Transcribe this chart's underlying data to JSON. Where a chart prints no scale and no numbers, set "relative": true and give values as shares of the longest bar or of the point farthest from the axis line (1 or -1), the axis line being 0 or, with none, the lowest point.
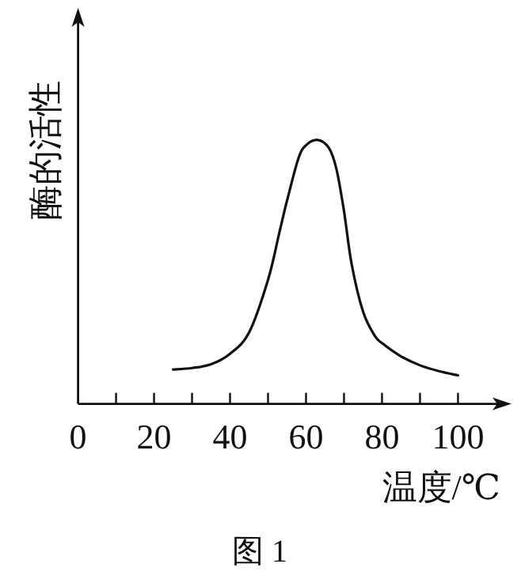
{
  "chart_data": {
    "type": "line",
    "relative": true,
    "xlabel": "温度/℃",
    "ylabel": "酶的活性",
    "annotations": [
      "图 1"
    ],
    "x": [
      25,
      30,
      35,
      40,
      45,
      50,
      53,
      55,
      58,
      60,
      63,
      66,
      68,
      70,
      72,
      75,
      78,
      80,
      85,
      90,
      95,
      100
    ],
    "series": [
      {
        "color": "#111111",
        "values": [
          0.13,
          0.136,
          0.15,
          0.19,
          0.27,
          0.47,
          0.65,
          0.77,
          0.93,
          0.98,
          1,
          0.97,
          0.89,
          0.73,
          0.53,
          0.35,
          0.26,
          0.23,
          0.18,
          0.146,
          0.124,
          0.108
        ]
      }
    ],
    "xlim": [
      0,
      112
    ],
    "xticks": [
      0,
      {
        "value": 10,
        "label": null
      },
      20,
      {
        "value": 30,
        "label": null
      },
      40,
      {
        "value": 50,
        "label": null
      },
      60,
      {
        "value": 70,
        "label": null
      },
      80,
      {
        "value": 90,
        "label": null
      },
      100
    ]
  }
}
